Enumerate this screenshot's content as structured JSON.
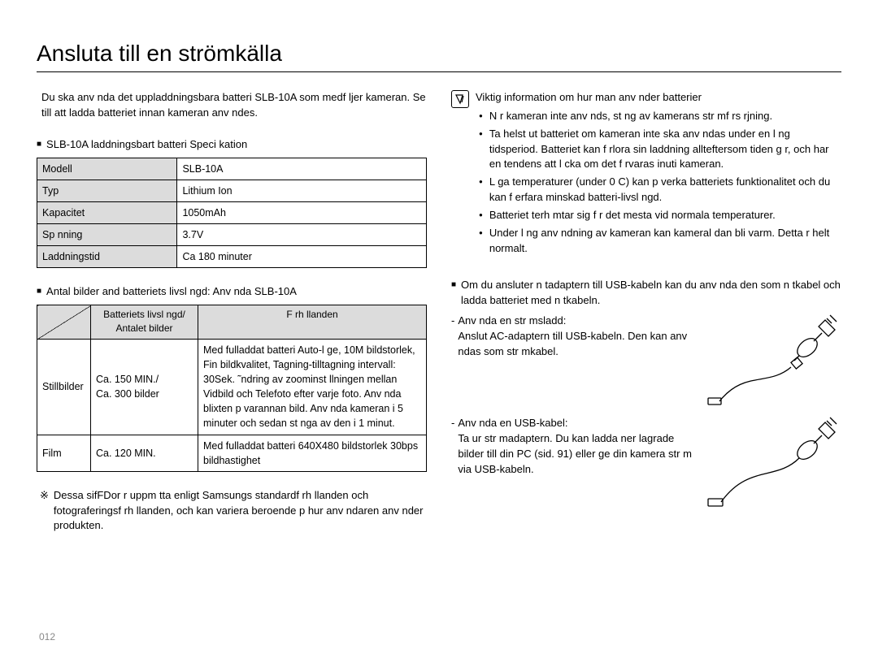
{
  "title": "Ansluta till en strömkälla",
  "intro": "Du ska anv nda det uppladdningsbara batteri SLB-10A som medf ljer kameran. Se till att ladda batteriet innan kameran anv ndes.",
  "spec_heading": "SLB-10A laddningsbart batteri Speci kation",
  "spec_table": {
    "rows": [
      [
        "Modell",
        "SLB-10A"
      ],
      [
        "Typ",
        "Lithium Ion"
      ],
      [
        "Kapacitet",
        "1050mAh"
      ],
      [
        "Sp nning",
        "3.7V"
      ],
      [
        "Laddningstid",
        "Ca 180 minuter"
      ]
    ]
  },
  "life_heading": "Antal bilder and batteriets livsl ngd: Anv nda SLB-10A",
  "life_table": {
    "head_col2": "Batteriets livsl ngd/\nAntalet bilder",
    "head_col3": "F rh llanden",
    "rows": [
      {
        "c1": "Stillbilder",
        "c2": "Ca. 150 MIN./\nCa. 300 bilder",
        "c3": "Med fulladdat batteri Auto-l ge, 10M bildstorlek, Fin bildkvalitet, Tagning-tilltagning intervall: 30Sek. ˜ndring av zoominst llningen mellan Vidbild och Telefoto efter varje foto. Anv nda blixten p  varannan bild. Anv nda kameran i 5 minuter och sedan st nga av den i 1 minut."
      },
      {
        "c1": "Film",
        "c2": "Ca. 120 MIN.",
        "c3": "Med fulladdat batteri 640X480 bildstorlek 30bps bildhastighet"
      }
    ]
  },
  "footnote_marker": "※",
  "footnote": "Dessa sifFDor r uppm tta enligt Samsungs standardf rh llanden och fotograferingsf rh llanden, och kan variera beroende p  hur anv ndaren anv nder produkten.",
  "page_number": "012",
  "info_heading": "Viktig information om hur man anv nder batterier",
  "info_bullets": [
    "N r kameran inte anv nds, st ng av kamerans str mf rs rjning.",
    "Ta helst ut batteriet om kameran inte ska anv ndas under en l ng tidsperiod. Batteriet kan f rlora sin laddning allteftersom tiden g r, och har en tendens att l cka om det f rvaras inuti kameran.",
    "L ga temperaturer (under 0 C) kan p verka batteriets funktionalitet och du kan f  erfara minskad batteri-livsl ngd.",
    "Batteriet  terh mtar sig f r det mesta vid normala temperaturer.",
    "Under l ng anv ndning av kameran kan kameral dan bli varm. Detta  r helt normalt."
  ],
  "cable_heading": "Om du ansluter n tadaptern till USB-kabeln kan du anv nda den som n tkabel och ladda batteriet med n tkabeln.",
  "cable_items": [
    {
      "label": "Anv nda en str msladd:",
      "body": "Anslut AC-adaptern till USB-kabeln. Den kan anv ndas som str mkabel."
    },
    {
      "label": "Anv nda en USB-kabel:",
      "body": "Ta ur str madaptern. Du kan ladda ner lagrade bilder till din PC (sid. 91) eller ge din kamera str m via USB-kabeln."
    }
  ]
}
